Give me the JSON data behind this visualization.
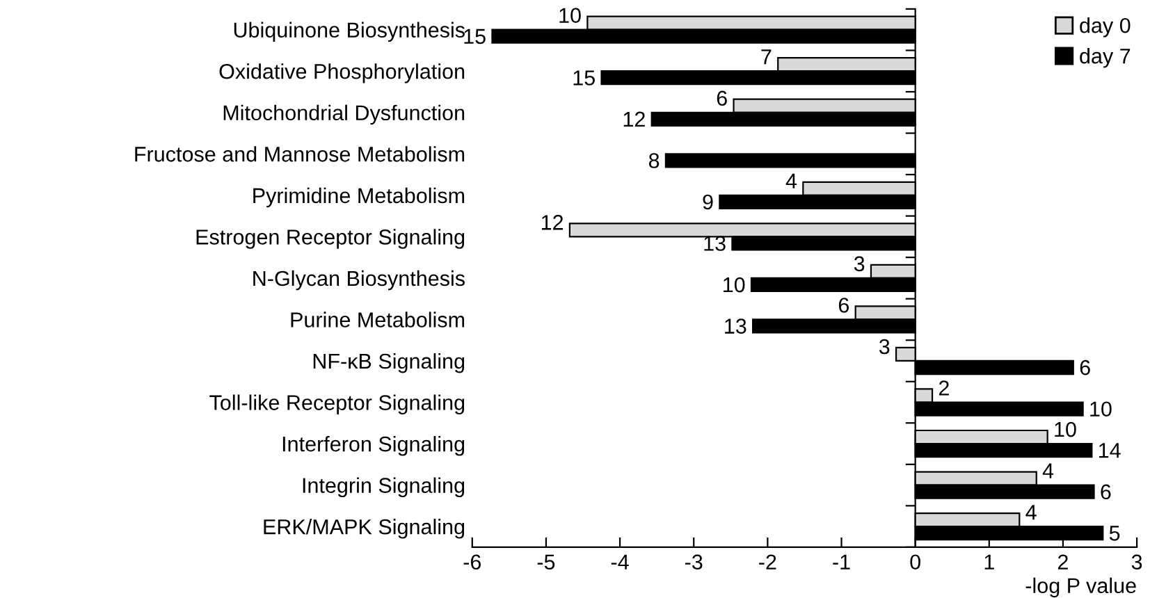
{
  "chart_data": {
    "type": "bar",
    "orientation": "horizontal",
    "xlabel": "-log P value",
    "categories": [
      "Ubiquinone Biosynthesis",
      "Oxidative Phosphorylation",
      "Mitochondrial Dysfunction",
      "Fructose and Mannose Metabolism",
      "Pyrimidine Metabolism",
      "Estrogen Receptor Signaling",
      "N-Glycan Biosynthesis",
      "Purine Metabolism",
      "NF-κB Signaling",
      "Toll-like Receptor Signaling",
      "Interferon Signaling",
      "Integrin Signaling",
      "ERK/MAPK Signaling"
    ],
    "series": [
      {
        "name": "day 0",
        "color": "#d9d9d9",
        "values": [
          -4.44,
          -1.86,
          -2.46,
          null,
          -1.52,
          -4.68,
          -0.6,
          -0.81,
          -0.26,
          0.23,
          1.79,
          1.64,
          1.41
        ]
      },
      {
        "name": "day 7",
        "color": "#000000",
        "values": [
          -5.73,
          -4.25,
          -3.57,
          -3.38,
          -2.65,
          -2.48,
          -2.22,
          -2.2,
          2.14,
          2.27,
          2.39,
          2.42,
          2.54
        ]
      }
    ],
    "annotations": [
      {
        "text": "10",
        "x": -4.44,
        "y": "Ubiquinone Biosynthesis"
      },
      {
        "text": "7",
        "x": -1.86,
        "y": "Oxidative Phosphorylation"
      },
      {
        "text": "6",
        "x": -2.46,
        "y": "Mitochondrial Dysfunction"
      },
      {
        "text": "4",
        "x": -1.52,
        "y": "Pyrimidine Metabolism"
      },
      {
        "text": "12",
        "x": -4.68,
        "y": "Estrogen Receptor Signaling"
      },
      {
        "text": "3",
        "x": -0.6,
        "y": "N-Glycan Biosynthesis"
      },
      {
        "text": "6",
        "x": -0.81,
        "y": "Purine Metabolism"
      },
      {
        "text": "3",
        "x": -0.26,
        "y": "NF-κB Signaling"
      },
      {
        "text": "2",
        "x": 0.23,
        "y": "Toll-like Receptor Signaling"
      },
      {
        "text": "10",
        "x": 1.79,
        "y": "Interferon Signaling"
      },
      {
        "text": "4",
        "x": 1.64,
        "y": "Integrin Signaling"
      },
      {
        "text": "4",
        "x": 1.41,
        "y": "ERK/MAPK Signaling"
      },
      {
        "text": "15",
        "x": -5.73,
        "y": "Ubiquinone Biosynthesis"
      },
      {
        "text": "15",
        "x": -4.25,
        "y": "Oxidative Phosphorylation"
      },
      {
        "text": "12",
        "x": -3.57,
        "y": "Mitochondrial Dysfunction"
      },
      {
        "text": "8",
        "x": -3.38,
        "y": "Fructose and Mannose Metabolism"
      },
      {
        "text": "9",
        "x": -2.65,
        "y": "Pyrimidine Metabolism"
      },
      {
        "text": "13",
        "x": -2.48,
        "y": "Estrogen Receptor Signaling"
      },
      {
        "text": "10",
        "x": -2.22,
        "y": "N-Glycan Biosynthesis"
      },
      {
        "text": "13",
        "x": -2.2,
        "y": "Purine Metabolism"
      },
      {
        "text": "6",
        "x": 2.14,
        "y": "NF-κB Signaling"
      },
      {
        "text": "10",
        "x": 2.27,
        "y": "Toll-like Receptor Signaling"
      },
      {
        "text": "14",
        "x": 2.39,
        "y": "Interferon Signaling"
      },
      {
        "text": "6",
        "x": 2.42,
        "y": "Integrin Signaling"
      },
      {
        "text": "5",
        "x": 2.54,
        "y": "ERK/MAPK Signaling"
      }
    ],
    "xlim": [
      -6,
      3
    ],
    "xticks": [
      -6,
      -5,
      -4,
      -3,
      -2,
      -1,
      0,
      1,
      2,
      3
    ],
    "legend": "top right"
  }
}
